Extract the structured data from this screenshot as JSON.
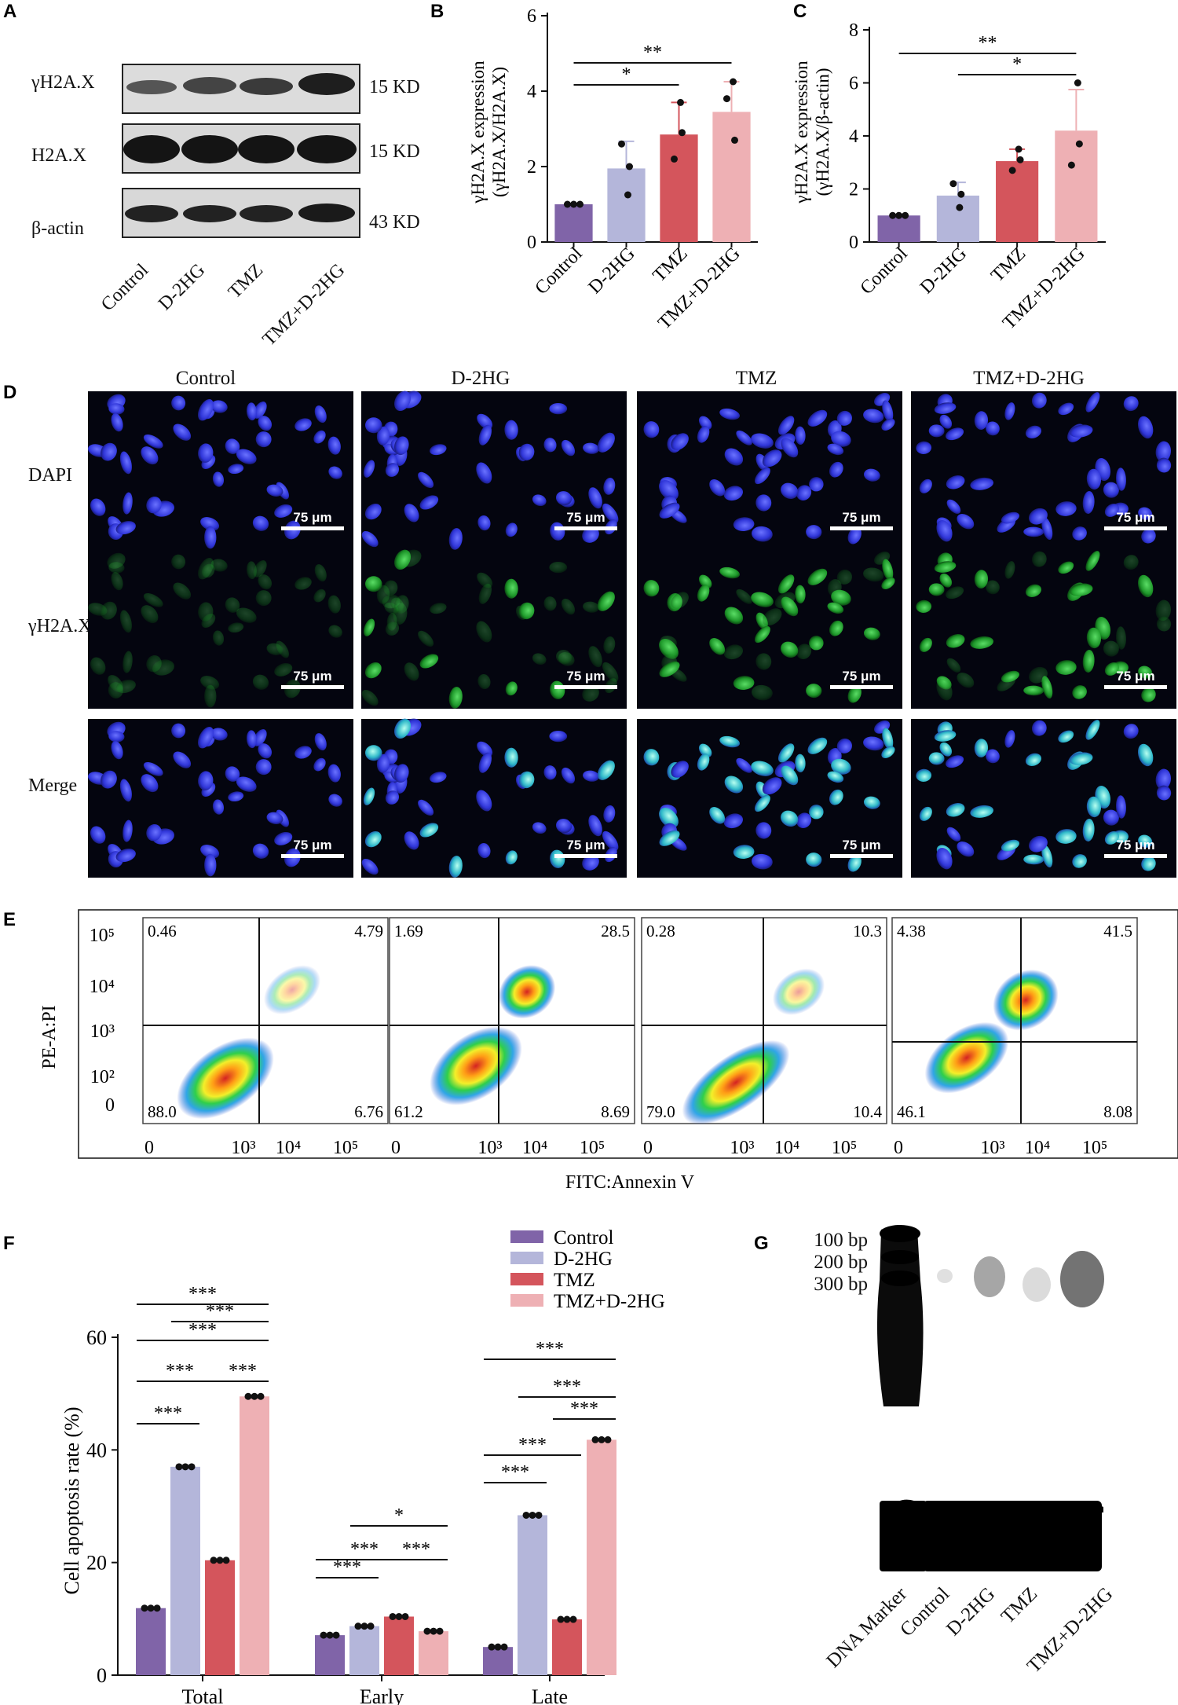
{
  "panel_letters": [
    "A",
    "B",
    "C",
    "D",
    "E",
    "F",
    "G"
  ],
  "panel_a": {
    "row_labels": [
      "γH2A.X",
      "H2A.X",
      "β-actin"
    ],
    "sizes": [
      "15 KD",
      "15 KD",
      "43 KD"
    ],
    "lanes": [
      "Control",
      "D-2HG",
      "TMZ",
      "TMZ+D-2HG"
    ]
  },
  "panel_d": {
    "columns": [
      "Control",
      "D-2HG",
      "TMZ",
      "TMZ+D-2HG"
    ],
    "rows": [
      "DAPI",
      "γH2A.X",
      "Merge"
    ],
    "scale_bar": "75 μm"
  },
  "panel_e": {
    "xlabel": "FITC:Annexin V",
    "ylabel": "PE-A:PI",
    "y_ticks": [
      "10⁵",
      "10⁴",
      "10³",
      "10²",
      "0"
    ],
    "x_ticks": [
      "0",
      "10³",
      "10⁴",
      "10⁵"
    ],
    "plots": [
      {
        "ul": "0.46",
        "ur": "4.79",
        "ll": "88.0",
        "lr": "6.76"
      },
      {
        "ul": "1.69",
        "ur": "28.5",
        "ll": "61.2",
        "lr": "8.69"
      },
      {
        "ul": "0.28",
        "ur": "10.3",
        "ll": "79.0",
        "lr": "10.4"
      },
      {
        "ul": "4.38",
        "ur": "41.5",
        "ll": "46.1",
        "lr": "8.08"
      }
    ]
  },
  "panel_g": {
    "bp_labels": [
      "100 bp",
      "200 bp",
      "300 bp"
    ],
    "lanes": [
      "DNA Marker",
      "Control",
      "D-2HG",
      "TMZ",
      "TMZ+D-2HG"
    ]
  },
  "colors": {
    "Control": "#8064a8",
    "D-2HG": "#b4b6da",
    "TMZ": "#d4555c",
    "TMZ+D-2HG": "#eeb0b4"
  },
  "chart_data": [
    {
      "panel": "B",
      "type": "bar",
      "ylabel": "γH2A.X expression (γH2A.X/H2A.X)",
      "categories": [
        "Control",
        "D-2HG",
        "TMZ",
        "TMZ+D-2HG"
      ],
      "values": [
        1.0,
        1.95,
        2.85,
        3.45
      ],
      "errors": [
        0.02,
        0.72,
        0.85,
        0.8
      ],
      "points": [
        [
          1.0,
          1.0,
          1.0
        ],
        [
          1.25,
          2.6,
          2.0
        ],
        [
          3.7,
          2.2,
          2.9
        ],
        [
          4.25,
          3.8,
          2.7
        ]
      ],
      "ylim": [
        0,
        6
      ],
      "y_ticks": [
        0,
        2,
        4,
        6
      ],
      "significance": [
        {
          "from": "Control",
          "to": "TMZ",
          "label": "*"
        },
        {
          "from": "Control",
          "to": "TMZ+D-2HG",
          "label": "**"
        }
      ]
    },
    {
      "panel": "C",
      "type": "bar",
      "ylabel": "γH2A.X expression (γH2A.X/β-actin)",
      "categories": [
        "Control",
        "D-2HG",
        "TMZ",
        "TMZ+D-2HG"
      ],
      "values": [
        1.0,
        1.75,
        3.05,
        4.2
      ],
      "errors": [
        0.02,
        0.5,
        0.45,
        1.55
      ],
      "points": [
        [
          1.0,
          1.0,
          1.0
        ],
        [
          1.3,
          2.2,
          1.8
        ],
        [
          3.5,
          2.7,
          3.1
        ],
        [
          6.0,
          2.9,
          3.7
        ]
      ],
      "ylim": [
        0,
        8
      ],
      "y_ticks": [
        0,
        2,
        4,
        6,
        8
      ],
      "significance": [
        {
          "from": "D-2HG",
          "to": "TMZ+D-2HG",
          "label": "*"
        },
        {
          "from": "Control",
          "to": "TMZ+D-2HG",
          "label": "**"
        }
      ]
    },
    {
      "panel": "F",
      "type": "bar",
      "ylabel": "Cell apoptosis rate (%)",
      "categories": [
        "Total",
        "Early",
        "Late"
      ],
      "series": [
        {
          "name": "Control",
          "values": [
            11.9,
            7.1,
            5.0
          ],
          "points": [
            [
              11.9,
              11.9,
              11.9
            ],
            [
              7.1,
              7.1,
              7.1
            ],
            [
              5.0,
              5.0,
              5.0
            ]
          ]
        },
        {
          "name": "D-2HG",
          "values": [
            37.0,
            8.7,
            28.4
          ],
          "points": [
            [
              37.0,
              37.0,
              37.0
            ],
            [
              8.7,
              8.7,
              8.7
            ],
            [
              28.4,
              28.4,
              28.4
            ]
          ]
        },
        {
          "name": "TMZ",
          "values": [
            20.4,
            10.4,
            9.9
          ],
          "points": [
            [
              20.4,
              20.4,
              20.4
            ],
            [
              10.4,
              10.4,
              10.4
            ],
            [
              9.9,
              9.9,
              9.9
            ]
          ]
        },
        {
          "name": "TMZ+D-2HG",
          "values": [
            49.5,
            7.8,
            41.8
          ],
          "points": [
            [
              49.5,
              49.5,
              49.5
            ],
            [
              7.8,
              7.8,
              7.8
            ],
            [
              41.8,
              41.8,
              41.8
            ]
          ]
        }
      ],
      "ylim": [
        0,
        60
      ],
      "y_ticks": [
        0,
        20,
        40,
        60
      ],
      "legend": "top-right"
    }
  ]
}
